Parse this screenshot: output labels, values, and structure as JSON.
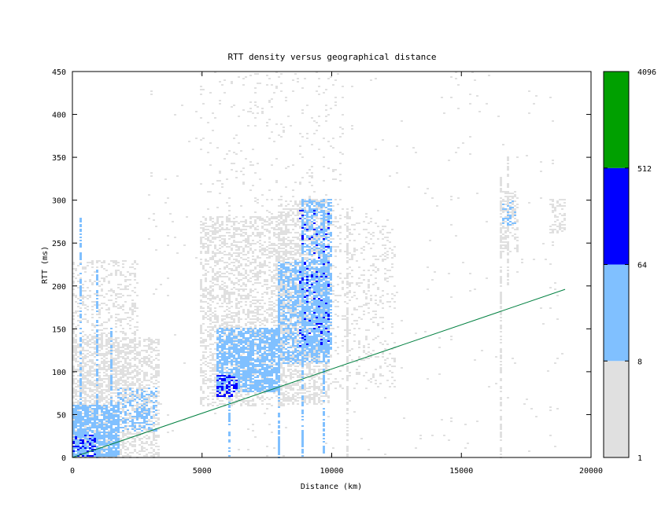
{
  "chart_data": {
    "type": "heatmap",
    "title": "RTT density versus geographical distance",
    "xlabel": "Distance (km)",
    "ylabel": "RTT (ms)",
    "xlim": [
      0,
      20000
    ],
    "ylim": [
      0,
      450
    ],
    "xticks": [
      0,
      5000,
      10000,
      15000,
      20000
    ],
    "yticks": [
      0,
      50,
      100,
      150,
      200,
      250,
      300,
      350,
      400,
      450
    ],
    "x_tick_labels": [
      "0",
      "5000",
      "10000",
      "15000",
      "20000"
    ],
    "y_tick_labels": [
      "0",
      "50",
      "100",
      "150",
      "200",
      "250",
      "300",
      "350",
      "400",
      "450"
    ],
    "grid": false,
    "color_scale": {
      "type": "log",
      "tick_labels": [
        "1",
        "8",
        "64",
        "512",
        "4096"
      ],
      "bins": [
        {
          "from": 1,
          "to": 8,
          "color": "#e0e0e0"
        },
        {
          "from": 8,
          "to": 64,
          "color": "#80c0ff"
        },
        {
          "from": 64,
          "to": 512,
          "color": "#0000ff"
        },
        {
          "from": 512,
          "to": 4096,
          "color": "#00a000"
        }
      ]
    },
    "reference_line": {
      "color": "#008040",
      "points": [
        [
          0,
          0
        ],
        [
          19000,
          196
        ]
      ]
    },
    "clusters": [
      {
        "x": [
          0,
          3300
        ],
        "y": [
          0,
          140
        ],
        "level": 1,
        "density": 0.45
      },
      {
        "x": [
          0,
          1800
        ],
        "y": [
          0,
          60
        ],
        "level": 2,
        "density": 0.75
      },
      {
        "x": [
          0,
          900
        ],
        "y": [
          0,
          25
        ],
        "level": 3,
        "density": 0.35
      },
      {
        "x": [
          1800,
          3300
        ],
        "y": [
          30,
          80
        ],
        "level": 2,
        "density": 0.35
      },
      {
        "x": [
          0,
          2500
        ],
        "y": [
          60,
          230
        ],
        "level": 1,
        "density": 0.25
      },
      {
        "x": [
          5000,
          8200
        ],
        "y": [
          60,
          280
        ],
        "level": 1,
        "density": 0.4
      },
      {
        "x": [
          5600,
          8000
        ],
        "y": [
          75,
          150
        ],
        "level": 2,
        "density": 0.7
      },
      {
        "x": [
          5600,
          6400
        ],
        "y": [
          70,
          95
        ],
        "level": 3,
        "density": 0.4
      },
      {
        "x": [
          8000,
          10000
        ],
        "y": [
          60,
          300
        ],
        "level": 1,
        "density": 0.5
      },
      {
        "x": [
          8000,
          10000
        ],
        "y": [
          110,
          230
        ],
        "level": 2,
        "density": 0.55
      },
      {
        "x": [
          8900,
          10000
        ],
        "y": [
          120,
          300
        ],
        "level": 2,
        "density": 0.45
      },
      {
        "x": [
          8800,
          9900
        ],
        "y": [
          130,
          290
        ],
        "level": 3,
        "density": 0.08
      },
      {
        "x": [
          10000,
          12500
        ],
        "y": [
          80,
          280
        ],
        "level": 1,
        "density": 0.12
      },
      {
        "x": [
          5000,
          10500
        ],
        "y": [
          280,
          450
        ],
        "level": 1,
        "density": 0.04
      },
      {
        "x": [
          16500,
          17200
        ],
        "y": [
          240,
          310
        ],
        "level": 1,
        "density": 0.4
      },
      {
        "x": [
          16600,
          17100
        ],
        "y": [
          270,
          300
        ],
        "level": 2,
        "density": 0.3
      },
      {
        "x": [
          18400,
          19000
        ],
        "y": [
          260,
          300
        ],
        "level": 1,
        "density": 0.35
      },
      {
        "x": [
          3000,
          19000
        ],
        "y": [
          0,
          450
        ],
        "level": 1,
        "density": 0.008
      }
    ],
    "vertical_streaks": [
      {
        "x": 300,
        "y": [
          0,
          280
        ],
        "level": 2
      },
      {
        "x": 1000,
        "y": [
          0,
          220
        ],
        "level": 2
      },
      {
        "x": 1500,
        "y": [
          0,
          150
        ],
        "level": 2
      },
      {
        "x": 6100,
        "y": [
          0,
          100
        ],
        "level": 2
      },
      {
        "x": 8000,
        "y": [
          0,
          180
        ],
        "level": 2
      },
      {
        "x": 8900,
        "y": [
          0,
          300
        ],
        "level": 2
      },
      {
        "x": 9700,
        "y": [
          0,
          300
        ],
        "level": 2
      },
      {
        "x": 10600,
        "y": [
          0,
          290
        ],
        "level": 1
      },
      {
        "x": 16500,
        "y": [
          0,
          330
        ],
        "level": 1
      },
      {
        "x": 16800,
        "y": [
          200,
          350
        ],
        "level": 1
      }
    ]
  }
}
